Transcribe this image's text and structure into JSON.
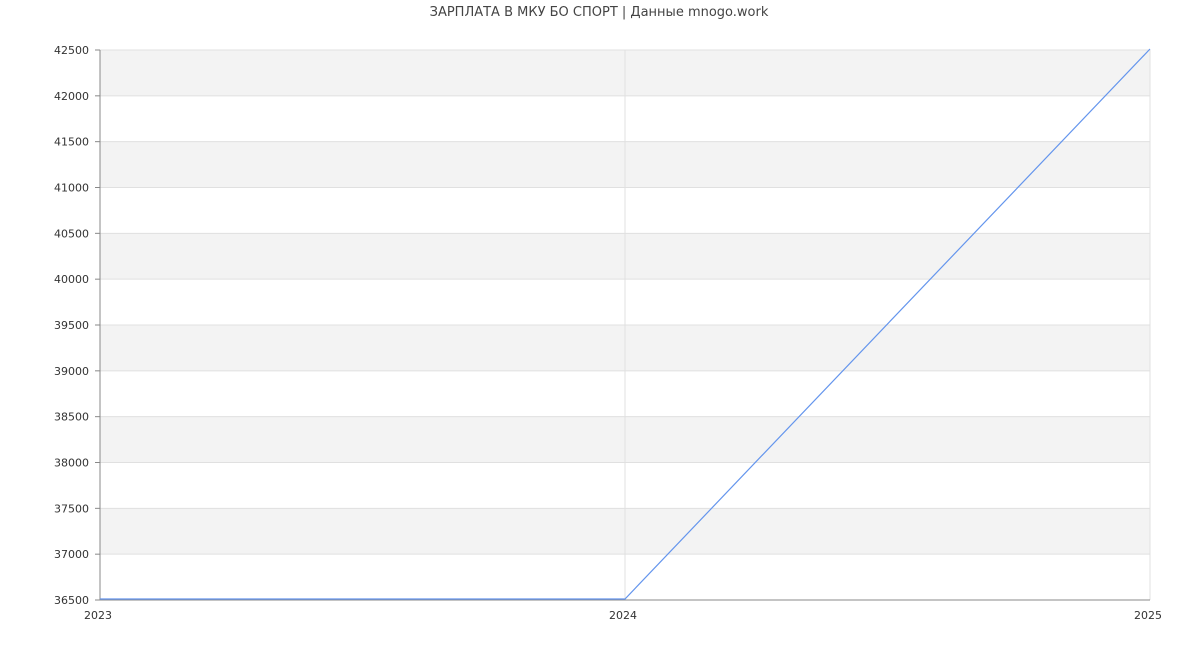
{
  "chart_data": {
    "type": "line",
    "title": "ЗАРПЛАТА В МКУ БО СПОРТ | Данные mnogo.work",
    "x": [
      "2023",
      "2024",
      "2025"
    ],
    "series": [
      {
        "values": [
          36500,
          36500,
          42500
        ],
        "color": "#6495ed"
      }
    ],
    "ylim": [
      36500,
      42500
    ],
    "yticks": [
      "36500",
      "37000",
      "37500",
      "38000",
      "38500",
      "39000",
      "39500",
      "40000",
      "40500",
      "41000",
      "41500",
      "42000",
      "42500"
    ],
    "xticks": [
      "2023",
      "2024",
      "2025"
    ],
    "grid": true,
    "band_color": "#f3f3f3",
    "grid_color": "#e0e0e0",
    "axis_color": "#888888"
  }
}
